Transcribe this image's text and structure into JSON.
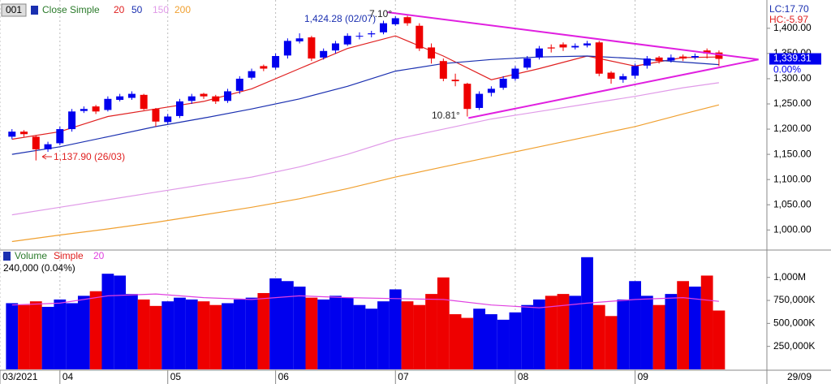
{
  "chart_data": [
    {
      "type": "candlestick",
      "id_label": "001",
      "title": "Close Simple",
      "up_color": "#0000ee",
      "down_color": "#ee0000",
      "open": [
        1185,
        1195,
        1185,
        1160,
        1172,
        1200,
        1236,
        1245,
        1238,
        1258,
        1262,
        1268,
        1240,
        1214,
        1226,
        1256,
        1270,
        1265,
        1256,
        1276,
        1302,
        1325,
        1322,
        1346,
        1374,
        1382,
        1342,
        1356,
        1368,
        1384,
        1388,
        1392,
        1408,
        1422,
        1405,
        1362,
        1335,
        1298,
        1290,
        1242,
        1272,
        1282,
        1300,
        1322,
        1342,
        1362,
        1368,
        1362,
        1366,
        1372,
        1312,
        1298,
        1306,
        1326,
        1342,
        1336,
        1344,
        1342,
        1356,
        1352
      ],
      "high": [
        1200,
        1198,
        1188,
        1175,
        1205,
        1240,
        1245,
        1248,
        1265,
        1270,
        1275,
        1270,
        1242,
        1230,
        1260,
        1270,
        1272,
        1268,
        1280,
        1305,
        1320,
        1328,
        1350,
        1380,
        1390,
        1385,
        1360,
        1375,
        1390,
        1392,
        1395,
        1415,
        1424.28,
        1425,
        1410,
        1370,
        1340,
        1310,
        1292,
        1275,
        1285,
        1305,
        1325,
        1345,
        1365,
        1368,
        1372,
        1370,
        1375,
        1375,
        1315,
        1310,
        1330,
        1345,
        1345,
        1348,
        1348,
        1350,
        1360,
        1356
      ],
      "low": [
        1180,
        1185,
        1137.9,
        1155,
        1168,
        1195,
        1232,
        1230,
        1235,
        1255,
        1258,
        1238,
        1205,
        1210,
        1222,
        1250,
        1260,
        1250,
        1252,
        1270,
        1298,
        1315,
        1318,
        1340,
        1370,
        1335,
        1338,
        1350,
        1365,
        1378,
        1382,
        1388,
        1405,
        1405,
        1355,
        1330,
        1295,
        1285,
        1225,
        1238,
        1265,
        1278,
        1296,
        1318,
        1338,
        1352,
        1355,
        1358,
        1362,
        1305,
        1290,
        1292,
        1300,
        1320,
        1330,
        1332,
        1335,
        1338,
        1340,
        1325
      ],
      "close": [
        1195,
        1190,
        1160,
        1170,
        1200,
        1235,
        1240,
        1235,
        1260,
        1265,
        1270,
        1240,
        1215,
        1225,
        1255,
        1265,
        1265,
        1255,
        1275,
        1300,
        1315,
        1320,
        1345,
        1375,
        1380,
        1340,
        1355,
        1370,
        1385,
        1385,
        1390,
        1410,
        1420,
        1410,
        1360,
        1340,
        1300,
        1295,
        1240,
        1270,
        1280,
        1300,
        1320,
        1340,
        1360,
        1360,
        1362,
        1365,
        1370,
        1310,
        1300,
        1305,
        1325,
        1340,
        1335,
        1342,
        1340,
        1345,
        1350,
        1339.31
      ],
      "series": [
        {
          "name": "20",
          "color": "#e02020",
          "x": [
            0,
            4,
            8,
            12,
            16,
            20,
            24,
            28,
            32,
            36,
            40,
            44,
            48,
            52,
            56,
            59
          ],
          "values": [
            1180,
            1195,
            1225,
            1240,
            1255,
            1280,
            1320,
            1360,
            1385,
            1345,
            1298,
            1320,
            1345,
            1325,
            1342,
            1343
          ]
        },
        {
          "name": "50",
          "color": "#1a2fb0",
          "x": [
            0,
            4,
            8,
            12,
            16,
            20,
            24,
            28,
            32,
            36,
            40,
            44,
            48,
            52,
            56,
            59
          ],
          "values": [
            1150,
            1165,
            1185,
            1205,
            1222,
            1240,
            1260,
            1285,
            1315,
            1330,
            1338,
            1343,
            1345,
            1340,
            1333,
            1328
          ]
        },
        {
          "name": "150",
          "color": "#e09ae8",
          "x": [
            0,
            4,
            8,
            12,
            16,
            20,
            24,
            28,
            32,
            36,
            40,
            44,
            48,
            52,
            56,
            59
          ],
          "values": [
            1030,
            1045,
            1060,
            1075,
            1090,
            1105,
            1125,
            1150,
            1180,
            1200,
            1220,
            1235,
            1250,
            1265,
            1282,
            1292
          ]
        },
        {
          "name": "200",
          "color": "#f0a030",
          "x": [
            0,
            4,
            8,
            12,
            16,
            20,
            24,
            28,
            32,
            36,
            40,
            44,
            48,
            52,
            56,
            59
          ],
          "values": [
            977,
            990,
            1002,
            1015,
            1030,
            1045,
            1062,
            1082,
            1105,
            1125,
            1145,
            1165,
            1185,
            1205,
            1230,
            1248
          ]
        }
      ],
      "trendlines": {
        "color": "#e020e0",
        "lines": [
          {
            "x": [
              31.3,
              62.3
            ],
            "values": [
              1432,
              1338
            ]
          },
          {
            "x": [
              38.1,
              62.3
            ],
            "values": [
              1222,
              1338
            ]
          }
        ]
      },
      "annotations": {
        "high": "1,424.28 (02/07)",
        "low": "1,137.90 (26/03)",
        "angle_low": "10.81°",
        "angle_high": "7.10°"
      },
      "lc": "LC:17.70",
      "hc": "HC:-5.97",
      "price_box": {
        "value": 1339.31,
        "label": "1,339.31"
      },
      "change": "0.00%",
      "xlim": [
        -1,
        63
      ],
      "xticks": [
        {
          "value": -1,
          "label": "03/2021"
        },
        {
          "value": 4,
          "label": "04"
        },
        {
          "value": 13,
          "label": "05"
        },
        {
          "value": 22,
          "label": "06"
        },
        {
          "value": 32,
          "label": "07"
        },
        {
          "value": 42,
          "label": "08"
        },
        {
          "value": 52,
          "label": "09"
        }
      ],
      "last_date": "29/09",
      "ylim": [
        965,
        1440
      ],
      "yticks": [
        {
          "value": 1000,
          "label": "1,000.00"
        },
        {
          "value": 1050,
          "label": "1,050.00"
        },
        {
          "value": 1100,
          "label": "1,100.00"
        },
        {
          "value": 1150,
          "label": "1,150.00"
        },
        {
          "value": 1200,
          "label": "1,200.00"
        },
        {
          "value": 1250,
          "label": "1,250.00"
        },
        {
          "value": 1300,
          "label": "1,300.00"
        },
        {
          "value": 1350,
          "label": "1,350.00"
        },
        {
          "value": 1400,
          "label": "1,400.00"
        }
      ]
    },
    {
      "type": "bar",
      "title": "Volume",
      "mode": "Simple",
      "info": "240,000 (0.04%)",
      "values": [
        720000000,
        700000000,
        740000000,
        680000000,
        760000000,
        720000000,
        800000000,
        850000000,
        1040000000,
        1020000000,
        820000000,
        760000000,
        690000000,
        740000000,
        780000000,
        760000000,
        740000000,
        700000000,
        720000000,
        760000000,
        780000000,
        830000000,
        990000000,
        960000000,
        900000000,
        780000000,
        760000000,
        800000000,
        780000000,
        700000000,
        660000000,
        740000000,
        870000000,
        740000000,
        700000000,
        820000000,
        1000000000,
        600000000,
        560000000,
        660000000,
        600000000,
        540000000,
        620000000,
        700000000,
        760000000,
        800000000,
        820000000,
        800000000,
        1220000000,
        700000000,
        580000000,
        760000000,
        960000000,
        800000000,
        700000000,
        820000000,
        960000000,
        900000000,
        1020000000,
        640000000
      ],
      "series": [
        {
          "name": "20",
          "color": "#e040e0",
          "x": [
            0,
            4,
            8,
            12,
            16,
            20,
            24,
            28,
            32,
            36,
            40,
            44,
            48,
            52,
            56,
            59
          ],
          "values": [
            700000000,
            720000000,
            800000000,
            820000000,
            780000000,
            760000000,
            800000000,
            780000000,
            770000000,
            760000000,
            700000000,
            670000000,
            720000000,
            760000000,
            780000000,
            740000000
          ]
        }
      ],
      "ylim": [
        0,
        1280000000
      ],
      "yticks": [
        {
          "value": 250000000,
          "label": "250,000K"
        },
        {
          "value": 500000000,
          "label": "500,000K"
        },
        {
          "value": 750000000,
          "label": "750,000K"
        },
        {
          "value": 1000000000,
          "label": "1,000M"
        }
      ]
    }
  ]
}
